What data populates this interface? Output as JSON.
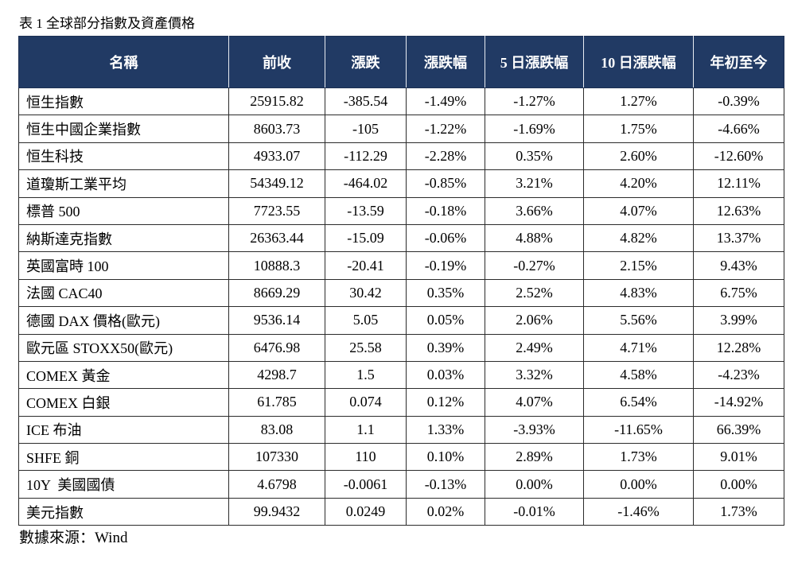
{
  "caption": "表 1 全球部分指數及資產價格",
  "colors": {
    "header_background": "#213a64",
    "header_text": "#ffffff",
    "border": "#2b2b2b"
  },
  "table": {
    "headers": [
      "名稱",
      "前收",
      "漲跌",
      "漲跌幅",
      "5 日漲跌幅",
      "10 日漲跌幅",
      "年初至今"
    ],
    "rows": [
      [
        "恒生指數",
        "25915.82",
        "-385.54",
        "-1.49%",
        "-1.27%",
        "1.27%",
        "-0.39%"
      ],
      [
        "恒生中國企業指數",
        "8603.73",
        "-105",
        "-1.22%",
        "-1.69%",
        "1.75%",
        "-4.66%"
      ],
      [
        "恒生科技",
        "4933.07",
        "-112.29",
        "-2.28%",
        "0.35%",
        "2.60%",
        "-12.60%"
      ],
      [
        "道瓊斯工業平均",
        "54349.12",
        "-464.02",
        "-0.85%",
        "3.21%",
        "4.20%",
        "12.11%"
      ],
      [
        "標普 500",
        "7723.55",
        "-13.59",
        "-0.18%",
        "3.66%",
        "4.07%",
        "12.63%"
      ],
      [
        "納斯達克指數",
        "26363.44",
        "-15.09",
        "-0.06%",
        "4.88%",
        "4.82%",
        "13.37%"
      ],
      [
        "英國富時 100",
        "10888.3",
        "-20.41",
        "-0.19%",
        "-0.27%",
        "2.15%",
        "9.43%"
      ],
      [
        "法國 CAC40",
        "8669.29",
        "30.42",
        "0.35%",
        "2.52%",
        "4.83%",
        "6.75%"
      ],
      [
        "德國 DAX 價格(歐元)",
        "9536.14",
        "5.05",
        "0.05%",
        "2.06%",
        "5.56%",
        "3.99%"
      ],
      [
        "歐元區 STOXX50(歐元)",
        "6476.98",
        "25.58",
        "0.39%",
        "2.49%",
        "4.71%",
        "12.28%"
      ],
      [
        "COMEX 黃金",
        "4298.7",
        "1.5",
        "0.03%",
        "3.32%",
        "4.58%",
        "-4.23%"
      ],
      [
        "COMEX 白銀",
        "61.785",
        "0.074",
        "0.12%",
        "4.07%",
        "6.54%",
        "-14.92%"
      ],
      [
        "ICE 布油",
        "83.08",
        "1.1",
        "1.33%",
        "-3.93%",
        "-11.65%",
        "66.39%"
      ],
      [
        "SHFE 銅",
        "107330",
        "110",
        "0.10%",
        "2.89%",
        "1.73%",
        "9.01%"
      ],
      [
        "10Y  美國國債",
        "4.6798",
        "-0.0061",
        "-0.13%",
        "0.00%",
        "0.00%",
        "0.00%"
      ],
      [
        "美元指數",
        "99.9432",
        "0.0249",
        "0.02%",
        "-0.01%",
        "-1.46%",
        "1.73%"
      ]
    ]
  },
  "source": "數據來源：Wind"
}
